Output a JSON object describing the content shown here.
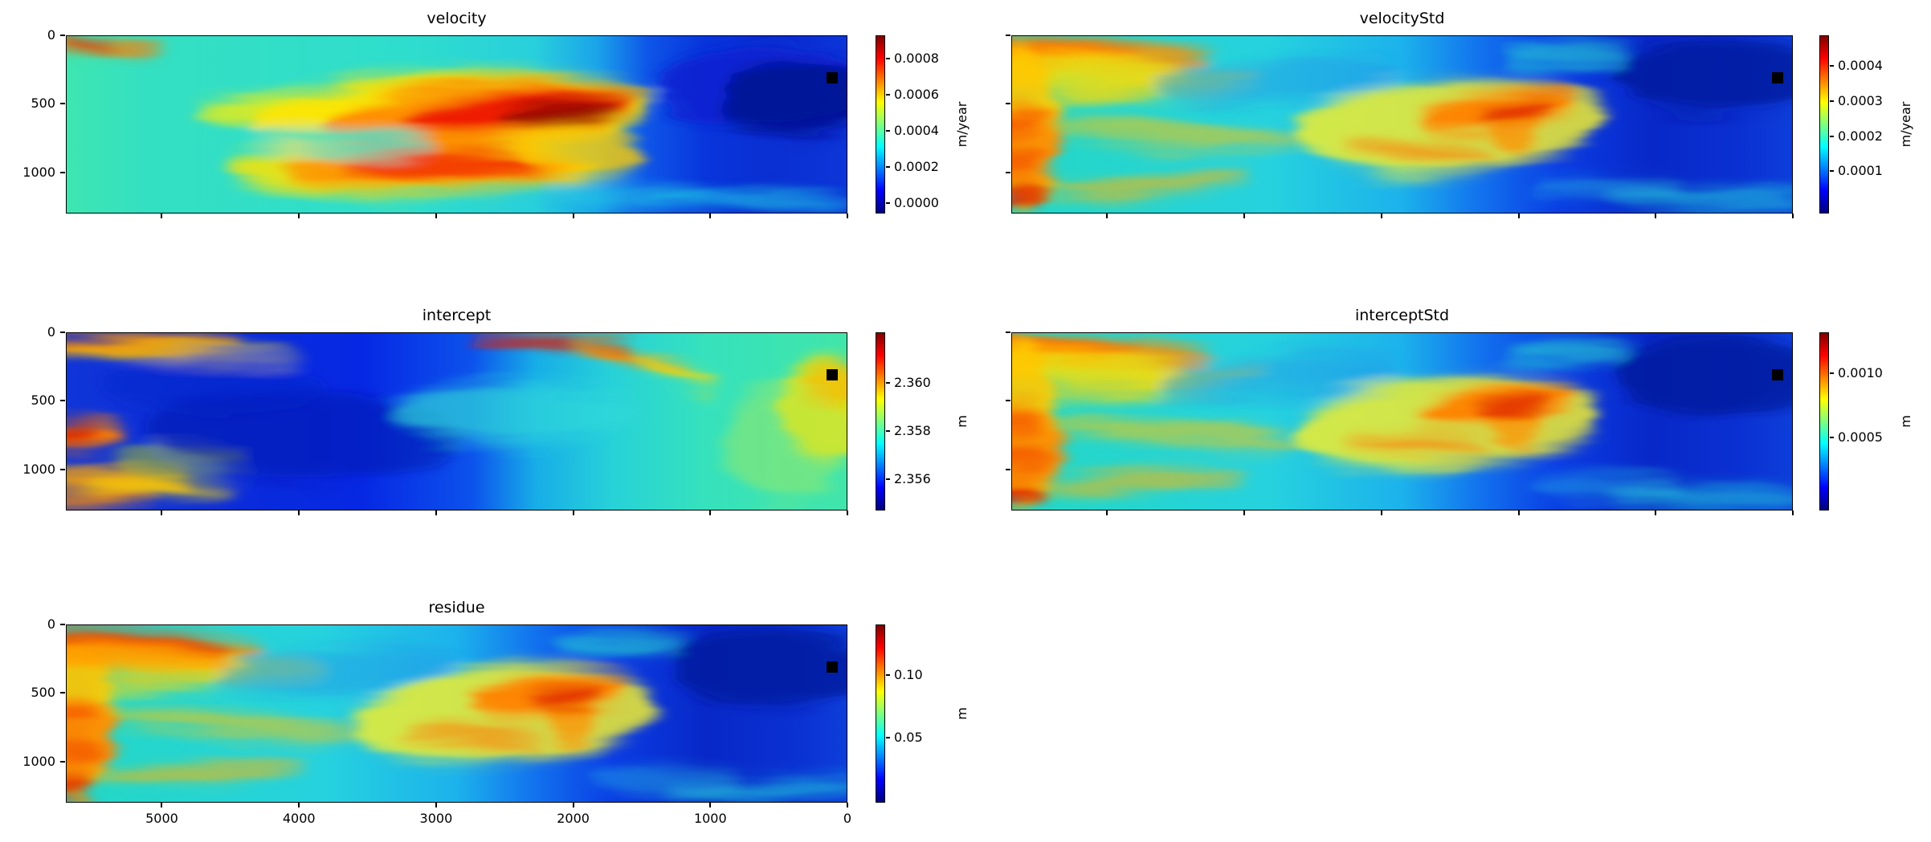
{
  "figure": {
    "background": "#ffffff",
    "rows": 3,
    "cols": 2,
    "grid": "off",
    "colormap": "jet"
  },
  "chart_data": [
    {
      "type": "heatmap",
      "title": "velocity",
      "colormap": "jet",
      "xlim": [
        5700,
        0
      ],
      "ylim": [
        0,
        1300
      ],
      "x": {
        "ticks": [
          "5000",
          "4000",
          "3000",
          "2000",
          "1000",
          "0"
        ],
        "labels_visible": false
      },
      "y": {
        "ticks": [
          "0",
          "500",
          "1000"
        ],
        "labels_visible": true
      },
      "colorbar": {
        "unit": "m/year",
        "ticks": [
          "0.0008",
          "0.0006",
          "0.0004",
          "0.0002",
          "0.0000"
        ],
        "vmin": -6e-05,
        "vmax": 0.00093
      },
      "marker": {
        "x": 110,
        "y": 310,
        "color": "#000000"
      }
    },
    {
      "type": "heatmap",
      "title": "velocityStd",
      "colormap": "jet",
      "xlim": [
        5700,
        0
      ],
      "ylim": [
        0,
        1300
      ],
      "x": {
        "ticks": [
          "5000",
          "4000",
          "3000",
          "2000",
          "1000",
          "0"
        ],
        "labels_visible": false
      },
      "y": {
        "ticks": [
          "0",
          "500",
          "1000"
        ],
        "labels_visible": false
      },
      "colorbar": {
        "unit": "m/year",
        "ticks": [
          "0.0004",
          "0.0003",
          "0.0002",
          "0.0001"
        ],
        "vmin": -2e-05,
        "vmax": 0.000487
      },
      "marker": {
        "x": 110,
        "y": 310,
        "color": "#000000"
      }
    },
    {
      "type": "heatmap",
      "title": "intercept",
      "colormap": "jet",
      "xlim": [
        5700,
        0
      ],
      "ylim": [
        0,
        1300
      ],
      "x": {
        "ticks": [
          "5000",
          "4000",
          "3000",
          "2000",
          "1000",
          "0"
        ],
        "labels_visible": false
      },
      "y": {
        "ticks": [
          "0",
          "500",
          "1000"
        ],
        "labels_visible": true
      },
      "colorbar": {
        "unit": "m",
        "ticks": [
          "2.360",
          "2.358",
          "2.356"
        ],
        "vmin": 2.3547,
        "vmax": 2.3621
      },
      "marker": {
        "x": 110,
        "y": 310,
        "color": "#000000"
      }
    },
    {
      "type": "heatmap",
      "title": "interceptStd",
      "colormap": "jet",
      "xlim": [
        5700,
        0
      ],
      "ylim": [
        0,
        1300
      ],
      "x": {
        "ticks": [
          "5000",
          "4000",
          "3000",
          "2000",
          "1000",
          "0"
        ],
        "labels_visible": false
      },
      "y": {
        "ticks": [
          "0",
          "500",
          "1000"
        ],
        "labels_visible": false
      },
      "colorbar": {
        "unit": "m",
        "ticks": [
          "0.0010",
          "0.0005"
        ],
        "vmin": -7e-05,
        "vmax": 0.00132
      },
      "marker": {
        "x": 110,
        "y": 310,
        "color": "#000000"
      }
    },
    {
      "type": "heatmap",
      "title": "residue",
      "colormap": "jet",
      "xlim": [
        5700,
        0
      ],
      "ylim": [
        0,
        1300
      ],
      "x": {
        "ticks": [
          "5000",
          "4000",
          "3000",
          "2000",
          "1000",
          "0"
        ],
        "labels_visible": true
      },
      "y": {
        "ticks": [
          "0",
          "500",
          "1000"
        ],
        "labels_visible": true
      },
      "colorbar": {
        "unit": "m",
        "ticks": [
          "0.10",
          "0.05"
        ],
        "vmin": -0.0024,
        "vmax": 0.1405
      },
      "marker": {
        "x": 110,
        "y": 310,
        "color": "#000000"
      }
    }
  ]
}
